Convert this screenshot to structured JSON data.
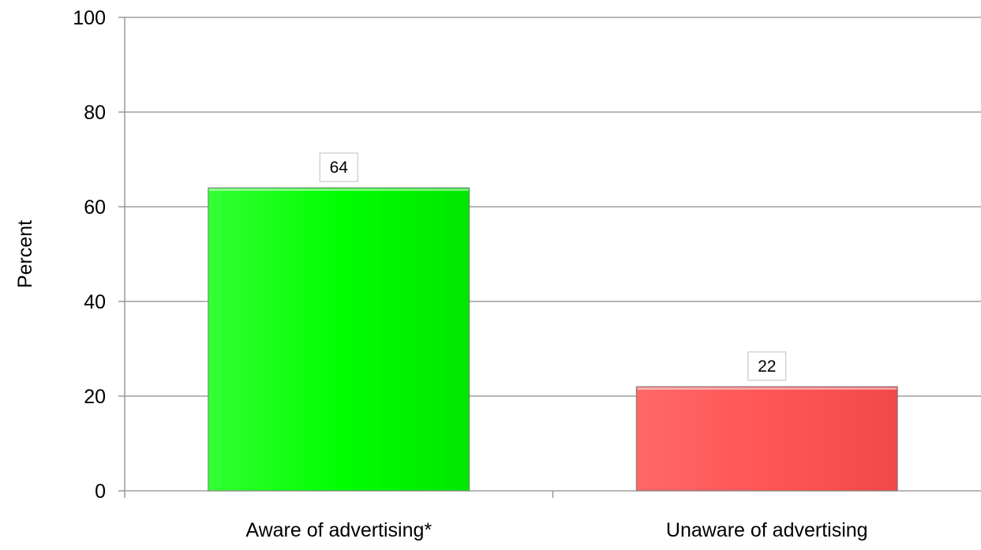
{
  "chart_data": {
    "type": "bar",
    "title": "",
    "xlabel": "",
    "ylabel": "Percent",
    "ylim": [
      0,
      100
    ],
    "yticks": [
      0,
      20,
      40,
      60,
      80,
      100
    ],
    "grid": true,
    "legend": "none",
    "categories": [
      "Aware of advertising*",
      "Unaware of advertising"
    ],
    "values": [
      64,
      22
    ],
    "data_labels": [
      "64",
      "22"
    ],
    "colors": [
      "#00ff00",
      "#ff5555"
    ]
  }
}
